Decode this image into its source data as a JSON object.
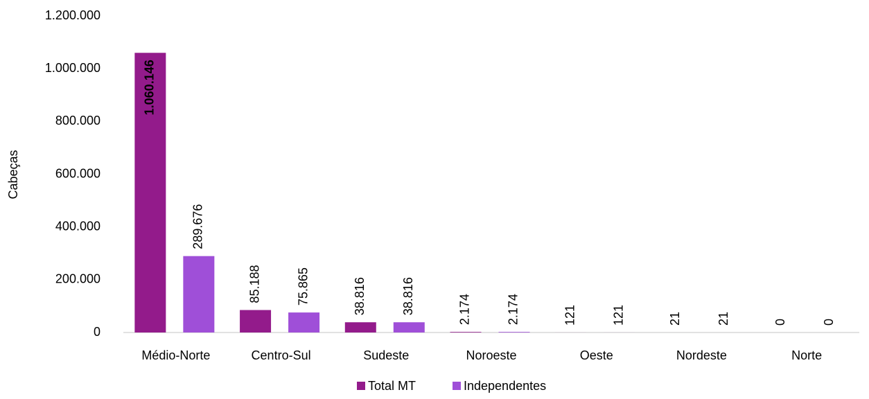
{
  "chart_data": {
    "type": "bar",
    "y_label": "Cabeças",
    "categories": [
      "Médio-Norte",
      "Centro-Sul",
      "Sudeste",
      "Noroeste",
      "Oeste",
      "Nordeste",
      "Norte"
    ],
    "series": [
      {
        "name": "Total MT",
        "color": "#931b8b",
        "values": [
          1060146,
          85188,
          38816,
          2174,
          121,
          21,
          0
        ],
        "value_labels": [
          "1.060.146",
          "85.188",
          "38.816",
          "2.174",
          "121",
          "21",
          "0"
        ]
      },
      {
        "name": "Independentes",
        "color": "#9f4fd8",
        "values": [
          289676,
          75865,
          38816,
          2174,
          121,
          21,
          0
        ],
        "value_labels": [
          "289.676",
          "75.865",
          "38.816",
          "2.174",
          "121",
          "21",
          "0"
        ]
      }
    ],
    "ylim": [
      0,
      1200000
    ],
    "yticks": [
      0,
      {
        "value": 200000,
        "label": "200.000"
      },
      {
        "value": 400000,
        "label": "400.000"
      },
      {
        "value": 600000,
        "label": "600.000"
      },
      {
        "value": 800000,
        "label": "800.000"
      },
      {
        "value": 1000000,
        "label": "1.000.000"
      },
      {
        "value": 1200000,
        "label": "1.200.000"
      }
    ],
    "grid": false,
    "legend": "bottom"
  }
}
